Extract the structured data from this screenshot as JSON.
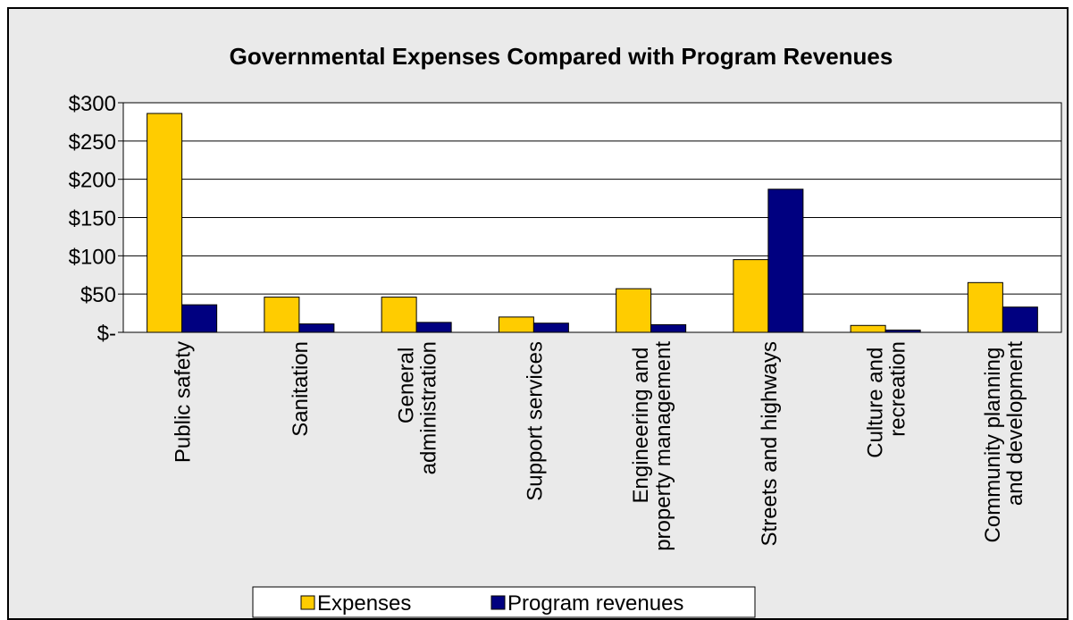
{
  "chart_data": {
    "type": "bar",
    "title": "Governmental Expenses Compared with Program Revenues",
    "categories": [
      "Public safety",
      "Sanitation",
      "General administration",
      "Support services",
      "Engineering and property management",
      "Streets and highways",
      "Culture and recreation",
      "Community planning and development"
    ],
    "series": [
      {
        "name": "Expenses",
        "color": "#ffcc00",
        "values": [
          286,
          46,
          46,
          20,
          57,
          95,
          9,
          65
        ]
      },
      {
        "name": "Program revenues",
        "color": "#000080",
        "values": [
          36,
          11,
          13,
          12,
          10,
          187,
          3,
          33
        ]
      }
    ],
    "ylim": [
      0,
      300
    ],
    "yticks": [
      {
        "value": 0,
        "label": "$-"
      },
      {
        "value": 50,
        "label": "$50"
      },
      {
        "value": 100,
        "label": "$100"
      },
      {
        "value": 150,
        "label": "$150"
      },
      {
        "value": 200,
        "label": "$200"
      },
      {
        "value": 250,
        "label": "$250"
      },
      {
        "value": 300,
        "label": "$300"
      }
    ],
    "grid": true,
    "legend": "bottom"
  }
}
